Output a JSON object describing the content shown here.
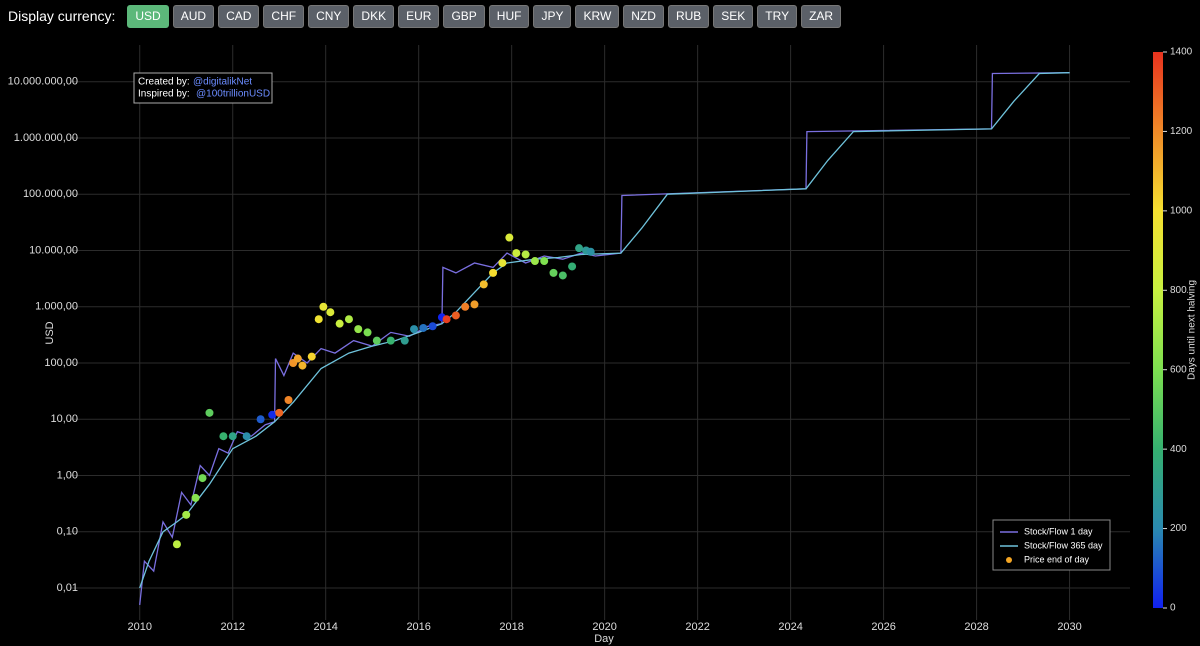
{
  "currency_bar": {
    "label": "Display currency:",
    "options": [
      "USD",
      "AUD",
      "CAD",
      "CHF",
      "CNY",
      "DKK",
      "EUR",
      "GBP",
      "HUF",
      "JPY",
      "KRW",
      "NZD",
      "RUB",
      "SEK",
      "TRY",
      "ZAR"
    ],
    "selected": "USD"
  },
  "chart_data": {
    "type": "scatter",
    "xlabel": "Day",
    "ylabel": "USD",
    "annotation": {
      "created_label": "Created by:",
      "created_handle": "@digitalikNet",
      "inspired_label": "Inspired by:",
      "inspired_handle": "@100trillionUSD"
    },
    "xlim": [
      2008.5,
      2031.3
    ],
    "xticks": [
      2010,
      2012,
      2014,
      2016,
      2018,
      2020,
      2022,
      2024,
      2026,
      2028,
      2030
    ],
    "ylog": true,
    "ylim": [
      0.0027,
      45000000
    ],
    "yticks": [
      {
        "value": 0.01,
        "label": "0,01"
      },
      {
        "value": 0.1,
        "label": "0,10"
      },
      {
        "value": 1,
        "label": "1,00"
      },
      {
        "value": 10,
        "label": "10,00"
      },
      {
        "value": 100,
        "label": "100,00"
      },
      {
        "value": 1000,
        "label": "1.000,00"
      },
      {
        "value": 10000,
        "label": "10.000,00"
      },
      {
        "value": 100000,
        "label": "100.000,00"
      },
      {
        "value": 1000000,
        "label": "1.000.000,00"
      },
      {
        "value": 10000000,
        "label": "10.000.000,00"
      }
    ],
    "grid": true,
    "colorbar": {
      "title": "Days until next halving",
      "clim": [
        0,
        1400
      ],
      "ticks": [
        0,
        200,
        400,
        600,
        800,
        1000,
        1200,
        1400
      ],
      "colors": [
        "#1020f0",
        "#2a8ab0",
        "#35b070",
        "#7de050",
        "#c8f040",
        "#f5e030",
        "#f08a28",
        "#e8321e"
      ]
    },
    "legend": "bottom-right",
    "series": [
      {
        "name": "Stock/Flow 1 day",
        "kind": "line",
        "color": "#7a6fe0",
        "x": [
          2010.0,
          2010.1,
          2010.3,
          2010.5,
          2010.7,
          2010.9,
          2011.1,
          2011.3,
          2011.5,
          2011.7,
          2011.9,
          2012.1,
          2012.4,
          2012.7,
          2012.9,
          2012.92,
          2013.1,
          2013.3,
          2013.6,
          2013.9,
          2014.2,
          2014.6,
          2015.0,
          2015.4,
          2015.8,
          2016.2,
          2016.5,
          2016.52,
          2016.8,
          2017.2,
          2017.6,
          2017.9,
          2018.3,
          2018.7,
          2019.1,
          2019.5,
          2019.8,
          2020.35,
          2020.37,
          2024.33,
          2024.35,
          2028.32,
          2028.34,
          2030.0
        ],
        "values": [
          0.005,
          0.03,
          0.02,
          0.15,
          0.08,
          0.5,
          0.3,
          1.5,
          1.0,
          3,
          2.5,
          6,
          5,
          8,
          9,
          120,
          60,
          150,
          100,
          180,
          150,
          250,
          200,
          350,
          300,
          450,
          500,
          5000,
          4000,
          6000,
          5000,
          9000,
          6000,
          8000,
          7000,
          9000,
          8000,
          9000,
          95000,
          125000,
          1300000,
          1450000,
          14000000,
          14500000
        ]
      },
      {
        "name": "Stock/Flow 365 day",
        "kind": "line",
        "color": "#6fc3dc",
        "x": [
          2010.0,
          2010.2,
          2010.5,
          2010.8,
          2011.0,
          2011.5,
          2012.0,
          2012.5,
          2012.9,
          2013.3,
          2013.9,
          2014.5,
          2015.0,
          2015.5,
          2016.0,
          2016.5,
          2016.8,
          2017.2,
          2017.6,
          2017.9,
          2018.5,
          2019.0,
          2019.5,
          2020.35,
          2020.8,
          2021.35,
          2024.33,
          2024.8,
          2025.35,
          2028.32,
          2028.8,
          2029.35,
          2030.0
        ],
        "values": [
          0.01,
          0.03,
          0.1,
          0.15,
          0.2,
          0.7,
          3,
          5,
          9,
          20,
          80,
          150,
          200,
          250,
          350,
          500,
          800,
          1800,
          4000,
          6000,
          7000,
          7500,
          8500,
          9000,
          25000,
          100000,
          125000,
          400000,
          1300000,
          1450000,
          4500000,
          14000000,
          14500000
        ]
      },
      {
        "name": "Price end of day",
        "kind": "points",
        "color": "#f5a623",
        "x": [
          2010.8,
          2011.0,
          2011.2,
          2011.35,
          2011.5,
          2011.8,
          2012.0,
          2012.3,
          2012.6,
          2012.85,
          2013.0,
          2013.2,
          2013.3,
          2013.4,
          2013.5,
          2013.7,
          2013.85,
          2013.95,
          2014.1,
          2014.3,
          2014.5,
          2014.7,
          2014.9,
          2015.1,
          2015.4,
          2015.7,
          2015.9,
          2016.1,
          2016.3,
          2016.5,
          2016.6,
          2016.8,
          2017.0,
          2017.2,
          2017.4,
          2017.6,
          2017.8,
          2017.95,
          2018.1,
          2018.3,
          2018.5,
          2018.7,
          2018.9,
          2019.1,
          2019.3,
          2019.45,
          2019.6,
          2019.7
        ],
        "values": [
          0.06,
          0.2,
          0.4,
          0.9,
          13,
          5,
          5,
          5,
          10,
          12,
          13,
          22,
          100,
          120,
          90,
          130,
          600,
          1000,
          800,
          500,
          600,
          400,
          350,
          250,
          250,
          250,
          400,
          420,
          450,
          650,
          600,
          700,
          1000,
          1100,
          2500,
          4000,
          6000,
          17000,
          9000,
          8500,
          6500,
          6500,
          4000,
          3600,
          5200,
          11000,
          10000,
          9500
        ],
        "color_values": [
          770,
          697,
          624,
          570,
          515,
          405,
          332,
          223,
          113,
          22,
          1285,
          1212,
          1175,
          1139,
          1102,
          1030,
          975,
          938,
          883,
          810,
          737,
          664,
          591,
          518,
          409,
          299,
          226,
          153,
          80,
          7,
          1372,
          1300,
          1227,
          1154,
          1081,
          1008,
          935,
          880,
          825,
          752,
          679,
          606,
          533,
          460,
          387,
          332,
          277,
          241
        ]
      }
    ]
  }
}
